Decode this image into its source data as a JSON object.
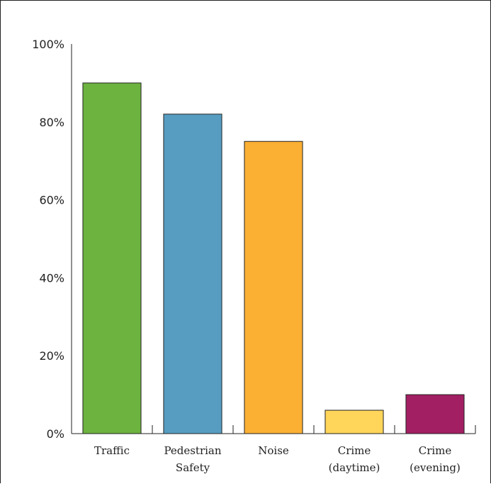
{
  "chart_data": {
    "type": "bar",
    "categories": [
      [
        "Traffic"
      ],
      [
        "Pedestrian",
        "Safety"
      ],
      [
        "Noise"
      ],
      [
        "Crime",
        "(daytime)"
      ],
      [
        "Crime",
        "(evening)"
      ]
    ],
    "values": [
      90,
      82,
      75,
      6,
      10
    ],
    "colors": [
      "#6db33f",
      "#579dc2",
      "#fbb034",
      "#ffd55a",
      "#a31f63"
    ],
    "yticks": [
      "0%",
      "20%",
      "40%",
      "60%",
      "80%",
      "100%"
    ],
    "ylim": [
      0,
      100
    ],
    "title": "",
    "xlabel": "",
    "ylabel": "",
    "grid": false,
    "legend": "none"
  }
}
